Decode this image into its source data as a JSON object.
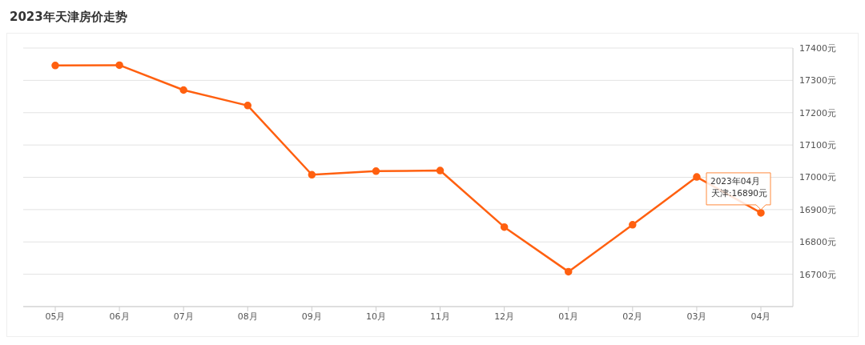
{
  "chart_data": {
    "type": "line",
    "title": "2023年天津房价走势",
    "categories": [
      "05月",
      "06月",
      "07月",
      "08月",
      "09月",
      "10月",
      "11月",
      "12月",
      "01月",
      "02月",
      "03月",
      "04月"
    ],
    "series": [
      {
        "color": "#ff6010",
        "values": [
          17346,
          17347,
          17270,
          17222,
          17008,
          17019,
          17021,
          16846,
          16708,
          16853,
          17001,
          16890
        ]
      }
    ],
    "ylim": [
      16600,
      17400
    ],
    "yticks": [
      {
        "value": 16700,
        "label": "16700元"
      },
      {
        "value": 16800,
        "label": "16800元"
      },
      {
        "value": 16900,
        "label": "16900元"
      },
      {
        "value": 17000,
        "label": "17000元"
      },
      {
        "value": 17100,
        "label": "17100元"
      },
      {
        "value": 17200,
        "label": "17200元"
      },
      {
        "value": 17300,
        "label": "17300元"
      },
      {
        "value": 17400,
        "label": "17400元"
      }
    ],
    "grid": "y",
    "marker": "circle",
    "line_style": "solid",
    "legend": false,
    "annotations": [
      "2023年04月",
      {
        "text": "天津:16890元",
        "x": "04月",
        "y": 16890
      }
    ]
  }
}
